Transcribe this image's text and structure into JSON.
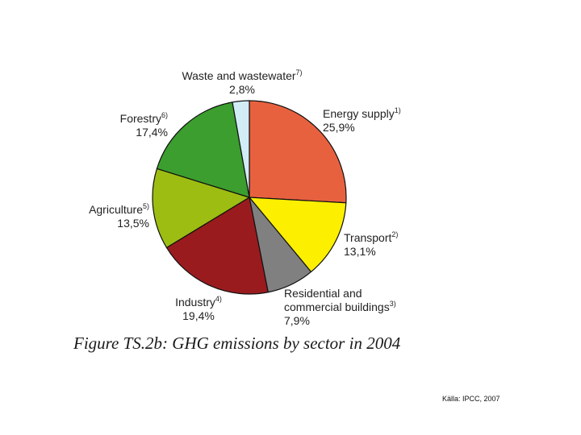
{
  "chart_data": {
    "type": "pie",
    "title": "Figure TS.2b: GHG emissions by sector in 2004",
    "units": "%",
    "slices": [
      {
        "name": "Energy supply",
        "note": "1)",
        "value": 25.9,
        "label": "25,9%",
        "color": "#e8613f"
      },
      {
        "name": "Transport",
        "note": "2)",
        "value": 13.1,
        "label": "13,1%",
        "color": "#fcef00"
      },
      {
        "name": "Residential and commercial buildings",
        "name_line1": "Residential and",
        "name_line2": "commercial buildings",
        "note": "3)",
        "value": 7.9,
        "label": "7,9%",
        "color": "#808080"
      },
      {
        "name": "Industry",
        "note": "4)",
        "value": 19.4,
        "label": "19,4%",
        "color": "#9a1b1e"
      },
      {
        "name": "Agriculture",
        "note": "5)",
        "value": 13.5,
        "label": "13,5%",
        "color": "#9dbd12"
      },
      {
        "name": "Forestry",
        "note": "6)",
        "value": 17.4,
        "label": "17,4%",
        "color": "#3b9e2e"
      },
      {
        "name": "Waste and wastewater",
        "note": "7)",
        "value": 2.8,
        "label": "2,8%",
        "color": "#d2ecf6"
      }
    ]
  },
  "source": "Källa: IPCC, 2007"
}
